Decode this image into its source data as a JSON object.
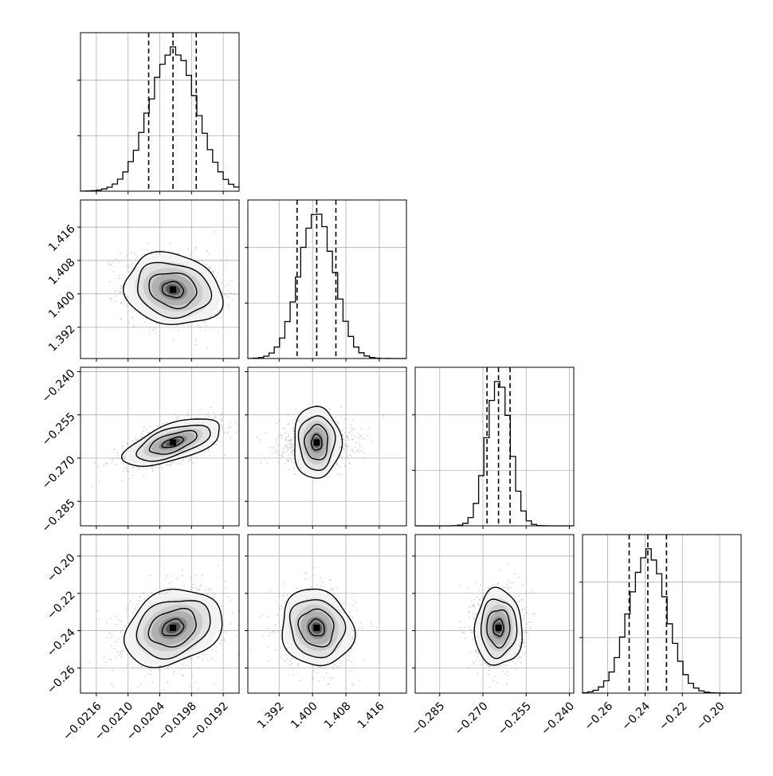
{
  "chart_data": {
    "type": "corner",
    "grid": true,
    "quantiles_shown": [
      0.16,
      0.5,
      0.84
    ],
    "colors": {
      "line": "#000000",
      "grid": "#b0b0b0",
      "points": "#9a9a9a",
      "background": "#ffffff"
    },
    "parameters": [
      {
        "range": [
          -0.0219,
          -0.0189
        ],
        "center": -0.02015,
        "sigma": 0.00045,
        "quantiles": [
          -0.02061,
          -0.02015,
          -0.01971
        ],
        "ticks": [
          -0.0216,
          -0.021,
          -0.0204,
          -0.0198,
          -0.0192
        ],
        "tick_labels": [
          "−0.0216",
          "−0.0210",
          "−0.0204",
          "−0.0198",
          "−0.0192"
        ]
      },
      {
        "range": [
          1.3845,
          1.4225
        ],
        "center": 1.401,
        "sigma": 0.0042,
        "quantiles": [
          1.3963,
          1.401,
          1.4056
        ],
        "ticks": [
          1.392,
          1.4,
          1.408,
          1.416
        ],
        "tick_labels": [
          "1.392",
          "1.400",
          "1.408",
          "1.416"
        ]
      },
      {
        "range": [
          -0.2935,
          -0.2385
        ],
        "center": -0.2646,
        "sigma": 0.004,
        "quantiles": [
          -0.2686,
          -0.2646,
          -0.2606
        ],
        "ticks": [
          -0.285,
          -0.27,
          -0.255,
          -0.24
        ],
        "tick_labels": [
          "−0.285",
          "−0.270",
          "−0.255",
          "−0.240"
        ]
      },
      {
        "range": [
          -0.2735,
          -0.1885
        ],
        "center": -0.2385,
        "sigma": 0.01,
        "quantiles": [
          -0.2485,
          -0.2385,
          -0.2285
        ],
        "ticks": [
          -0.26,
          -0.24,
          -0.22,
          -0.2
        ],
        "tick_labels": [
          "−0.26",
          "−0.24",
          "−0.22",
          "−0.20"
        ]
      }
    ],
    "correlations": {
      "1_0": -0.15,
      "2_0": 0.6,
      "2_1": 0.0,
      "3_0": 0.25,
      "3_1": -0.1,
      "3_2": 0.0
    }
  }
}
